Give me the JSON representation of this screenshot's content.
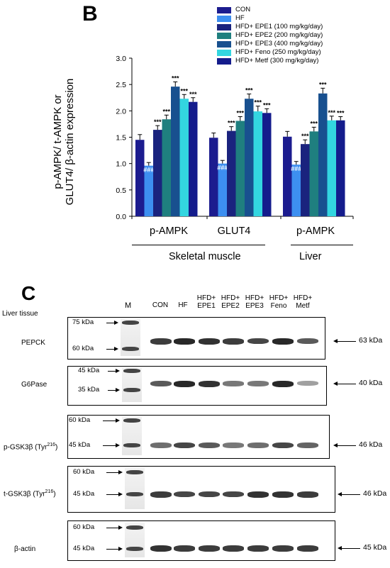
{
  "panel_b_letter": "B",
  "panel_c_letter": "C",
  "chart_data": {
    "type": "bar",
    "ylabel": "p-AMPK/ t-AMPK or\nGLUT4/ β-actin expression",
    "ylabel_lines": [
      "p-AMPK/ t-AMPK or",
      "GLUT4/ β-actin expression"
    ],
    "ylim": [
      0,
      3.0
    ],
    "yticks": [
      "0.0",
      "0.5",
      "1.0",
      "1.5",
      "2.0",
      "2.5",
      "3.0"
    ],
    "categories": [
      "p-AMPK",
      "GLUT4",
      "p-AMPK"
    ],
    "series": [
      {
        "name": "CON",
        "color": "#1c1c8f",
        "values": [
          1.45,
          1.49,
          1.51
        ],
        "errors": [
          0.1,
          0.09,
          0.1
        ],
        "marks": [
          "",
          "",
          ""
        ]
      },
      {
        "name": "HF",
        "color": "#3d8ff0",
        "values": [
          0.96,
          1.0,
          0.98
        ],
        "errors": [
          0.06,
          0.06,
          0.06
        ],
        "marks": [
          "###",
          "###",
          "###"
        ]
      },
      {
        "name": "HFD+ EPE1 (100 mg/kg/day)",
        "color": "#1a237e",
        "values": [
          1.64,
          1.62,
          1.37
        ],
        "errors": [
          0.08,
          0.08,
          0.08
        ],
        "marks": [
          "***",
          "***",
          "***"
        ]
      },
      {
        "name": "HFD+ EPE2 (200 mg/kg/day)",
        "color": "#1f7f7f",
        "values": [
          1.84,
          1.81,
          1.61
        ],
        "errors": [
          0.08,
          0.08,
          0.08
        ],
        "marks": [
          "***",
          "***",
          "***"
        ]
      },
      {
        "name": "HFD+ EPE3 (400 mg/kg/day)",
        "color": "#18508f",
        "values": [
          2.46,
          2.23,
          2.33
        ],
        "errors": [
          0.09,
          0.09,
          0.1
        ],
        "marks": [
          "***",
          "***",
          "***"
        ]
      },
      {
        "name": "HFD+ Feno (250 mg/kg/day)",
        "color": "#33d6e0",
        "values": [
          2.23,
          1.99,
          1.82
        ],
        "errors": [
          0.08,
          0.1,
          0.08
        ],
        "marks": [
          "***",
          "***",
          "***"
        ]
      },
      {
        "name": "HFD+ Metf (300 mg/kg/day)",
        "color": "#141c8c",
        "values": [
          2.17,
          1.96,
          1.82
        ],
        "errors": [
          0.08,
          0.08,
          0.07
        ],
        "marks": [
          "***",
          "***",
          "***"
        ]
      }
    ],
    "groups": [
      "Skeletal muscle",
      "Liver"
    ],
    "grid": false,
    "legend_position": "top-right"
  },
  "blots": {
    "marker_header": "M",
    "liver_tissue_label": "Liver tissue",
    "lanes": [
      {
        "line1": "CON",
        "line2": ""
      },
      {
        "line1": "HF",
        "line2": ""
      },
      {
        "line1": "HFD+",
        "line2": "EPE1"
      },
      {
        "line1": "HFD+",
        "line2": "EPE2"
      },
      {
        "line1": "HFD+",
        "line2": "EPE3"
      },
      {
        "line1": "HFD+",
        "line2": "Feno"
      },
      {
        "line1": "HFD+",
        "line2": "Metf"
      }
    ],
    "rows": [
      {
        "label": "PEPCK",
        "kda_upper": "75 kDa",
        "kda_lower": "60 kDa",
        "kda_band": "63 kDa",
        "intensities": [
          0.85,
          0.95,
          0.9,
          0.85,
          0.8,
          0.95,
          0.7
        ]
      },
      {
        "label": "G6Pase",
        "kda_upper": "45 kDa",
        "kda_lower": "35 kDa",
        "kda_band": "40 kDa",
        "intensities": [
          0.7,
          0.95,
          0.9,
          0.55,
          0.55,
          0.95,
          0.35
        ]
      },
      {
        "label": "p-GSK3β (Tyr",
        "label_sup": "216",
        "label_end": ")",
        "kda_upper": "60 kDa",
        "kda_lower": "45 kDa",
        "kda_band": "46 kDa",
        "intensities": [
          0.6,
          0.8,
          0.7,
          0.55,
          0.6,
          0.8,
          0.65
        ]
      },
      {
        "label": "t-GSK3β (Tyr",
        "label_sup": "216",
        "label_end": ")",
        "kda_upper": "60 kDa",
        "kda_lower": "45 kDa",
        "kda_band": "46 kDa",
        "intensities": [
          0.85,
          0.8,
          0.8,
          0.8,
          0.9,
          0.9,
          0.85
        ]
      },
      {
        "label": "β-actin",
        "kda_upper": "60 kDa",
        "kda_lower": "45 kDa",
        "kda_band": "45 kDa",
        "intensities": [
          0.9,
          0.85,
          0.85,
          0.85,
          0.85,
          0.85,
          0.85
        ]
      }
    ]
  }
}
